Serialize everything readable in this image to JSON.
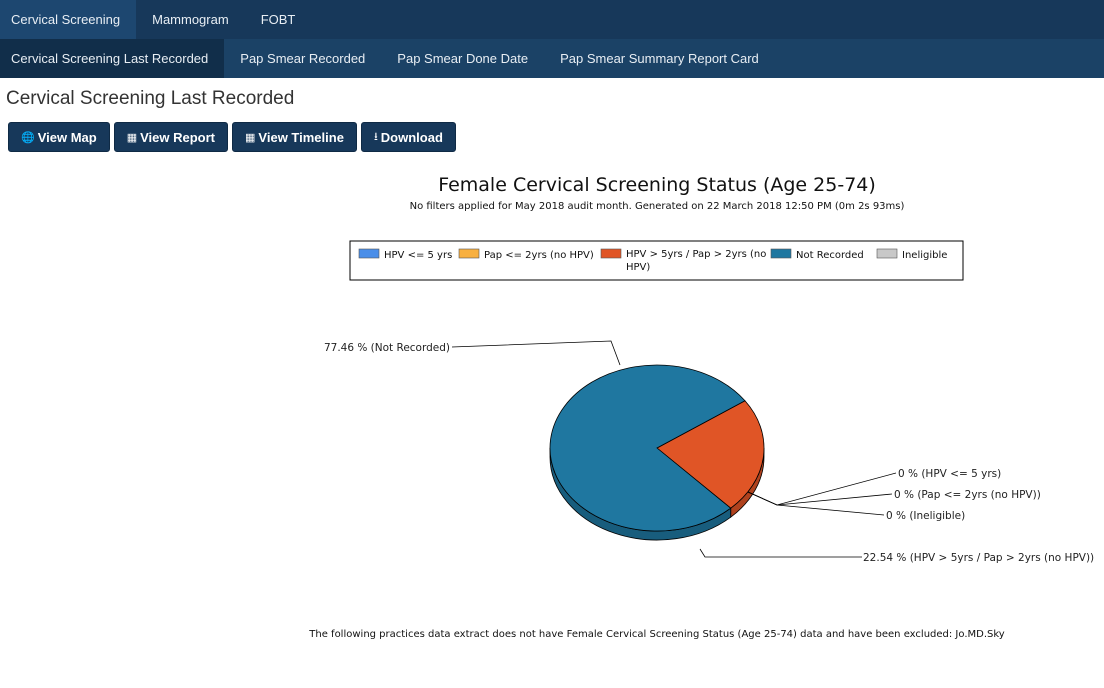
{
  "topnav": {
    "tabs": [
      "Cervical Screening",
      "Mammogram",
      "FOBT"
    ]
  },
  "subnav": {
    "tabs": [
      "Cervical Screening Last Recorded",
      "Pap Smear Recorded",
      "Pap Smear Done Date",
      "Pap Smear Summary Report Card"
    ]
  },
  "page": {
    "title": "Cervical Screening Last Recorded"
  },
  "buttons": {
    "view_map": "View Map",
    "view_report": "View Report",
    "view_timeline": "View Timeline",
    "download": "Download"
  },
  "icons": {
    "view_map": "globe-icon",
    "view_report": "table-icon",
    "view_timeline": "table-icon",
    "download": "download-icon"
  },
  "chart_data": {
    "type": "pie",
    "title": "Female Cervical Screening Status (Age 25-74)",
    "subtitle": "No filters applied for May 2018 audit month. Generated on 22 March 2018 12:50 PM (0m 2s 93ms)",
    "legend_position": "top",
    "series": [
      {
        "name": "HPV <= 5 yrs",
        "value": 0,
        "color": "#4a8ee8",
        "label": "0 % (HPV <= 5 yrs)"
      },
      {
        "name": "Pap <= 2yrs (no HPV)",
        "value": 0,
        "color": "#f8b040",
        "label": "0 % (Pap <= 2yrs (no HPV))"
      },
      {
        "name": "HPV > 5yrs / Pap > 2yrs (no HPV)",
        "value": 22.54,
        "color": "#e05526",
        "label": "22.54 % (HPV > 5yrs / Pap > 2yrs (no HPV))"
      },
      {
        "name": "Not Recorded",
        "value": 77.46,
        "color": "#1f77a0",
        "label": "77.46 % (Not Recorded)"
      },
      {
        "name": "Ineligible",
        "value": 0,
        "color": "#c8c8c8",
        "label": "0 % (Ineligible)"
      }
    ],
    "footnote": "The following practices data extract does not have Female Cervical Screening Status (Age 25-74) data and have been excluded: Jo.MD.Sky"
  }
}
